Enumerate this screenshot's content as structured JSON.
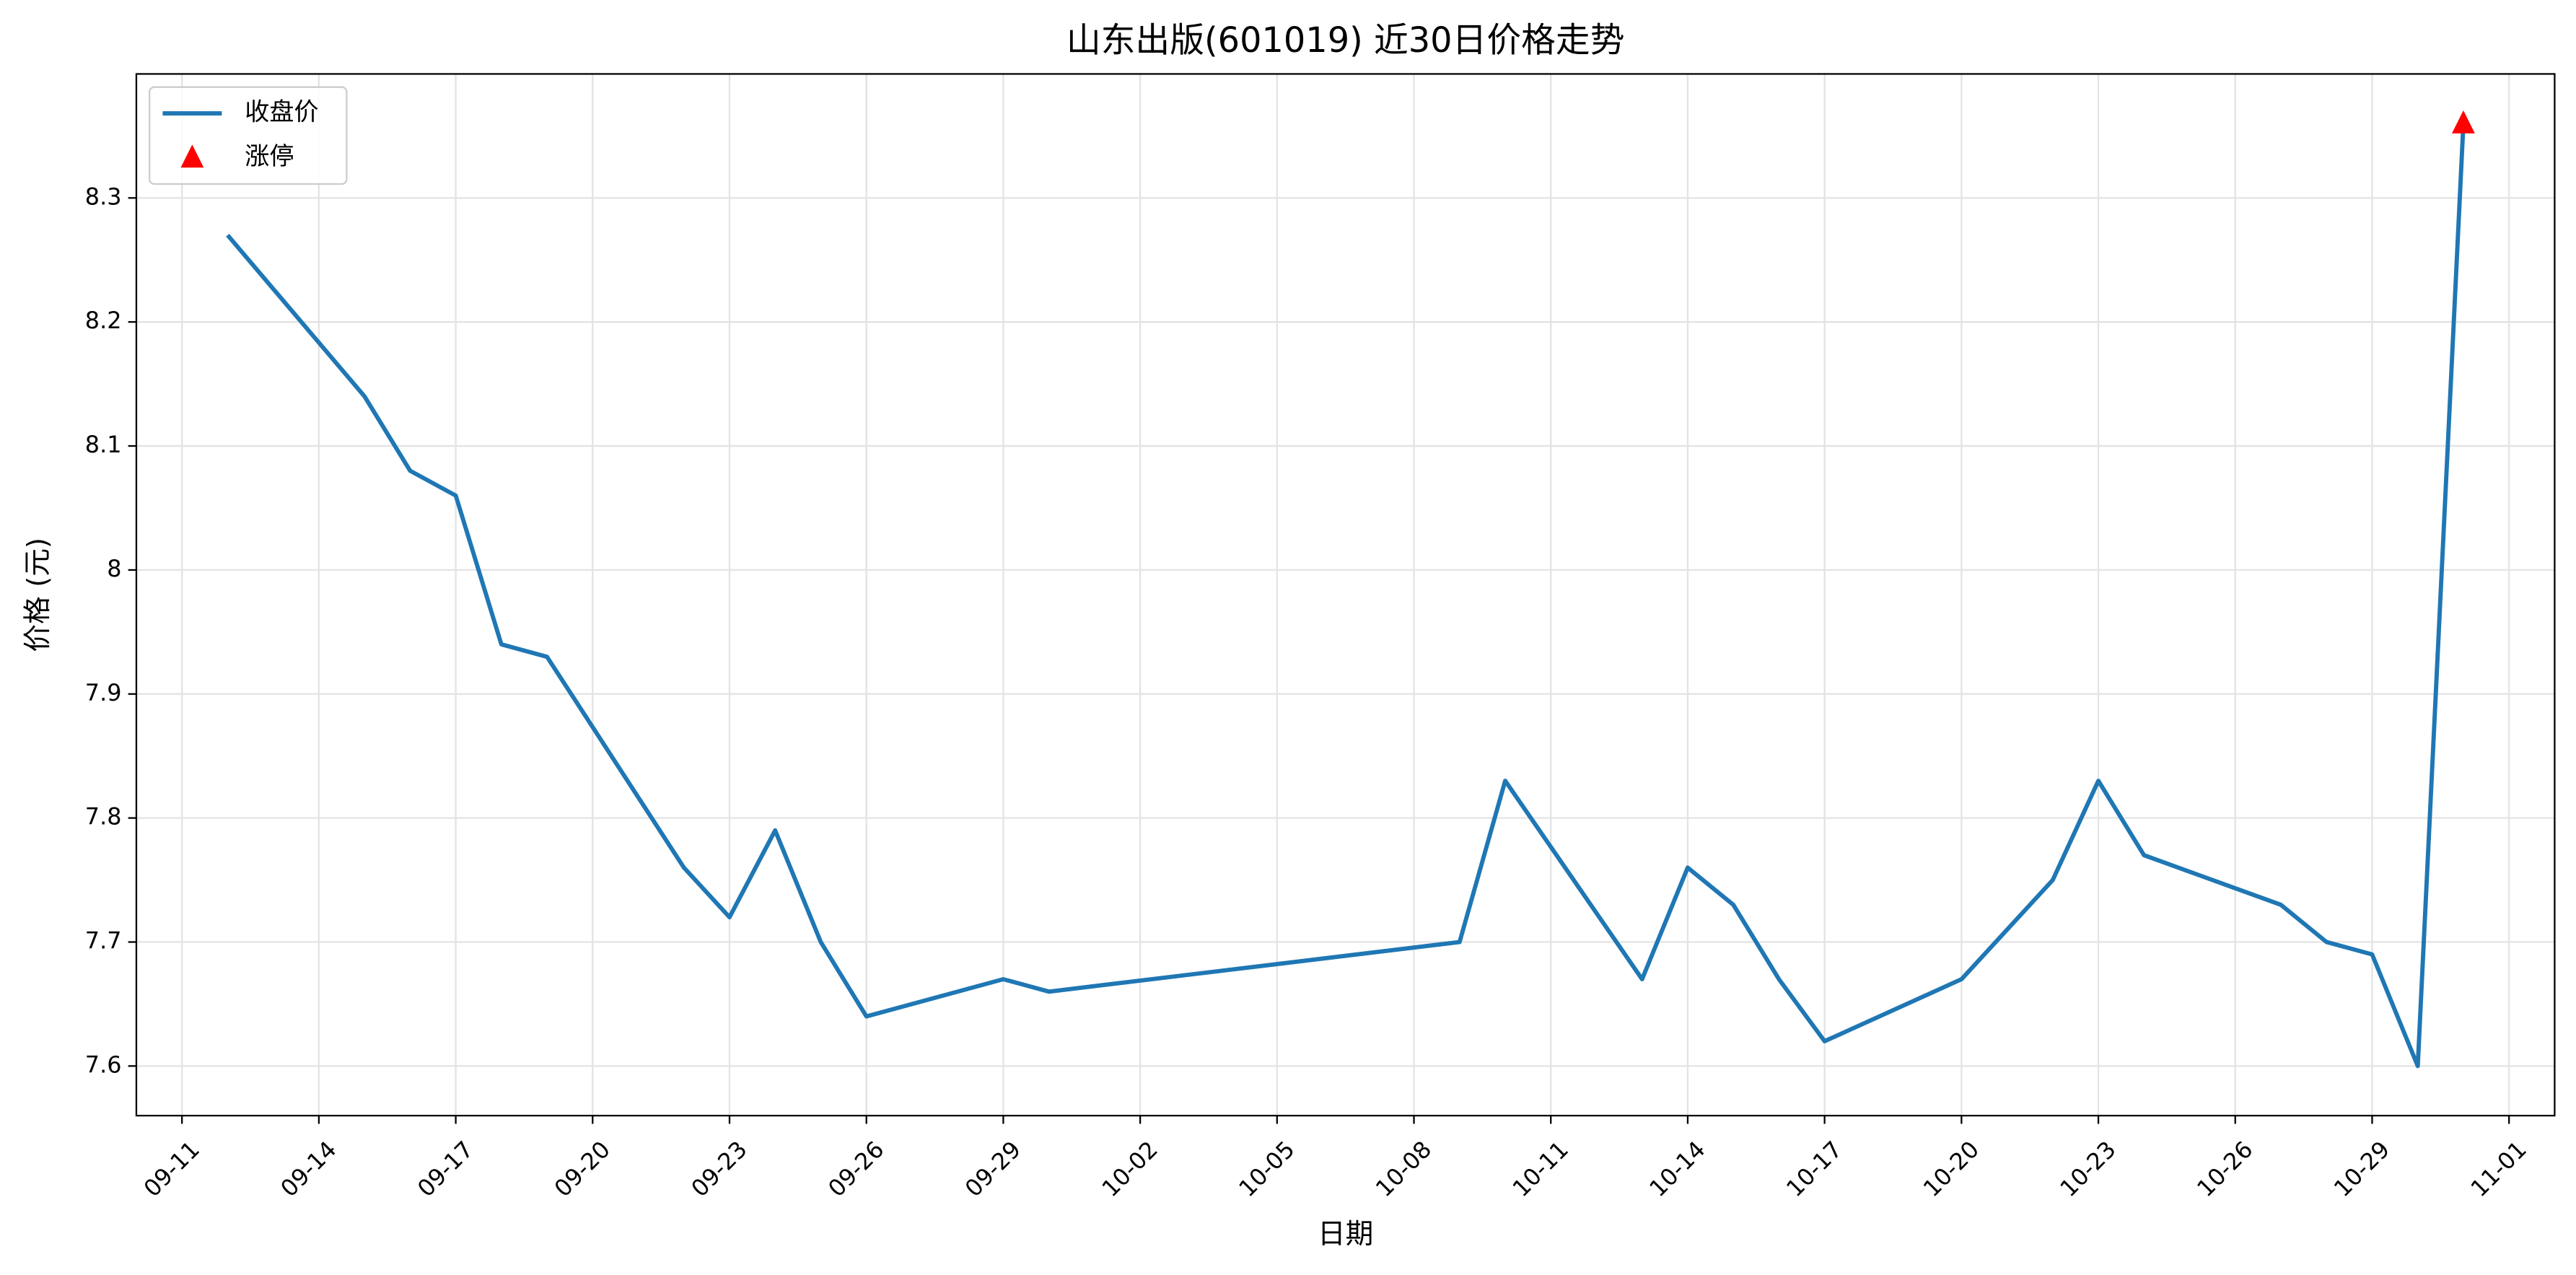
{
  "chart_data": {
    "type": "line",
    "title": "山东出版(601019) 近30日价格走势",
    "x_label": "日期",
    "y_label": "价格 (元)",
    "series": [
      {
        "name": "收盘价",
        "type": "line",
        "color": "#1f77b4",
        "x": [
          "09-12",
          "09-15",
          "09-16",
          "09-17",
          "09-18",
          "09-19",
          "09-22",
          "09-23",
          "09-24",
          "09-25",
          "09-26",
          "09-29",
          "09-30",
          "10-09",
          "10-10",
          "10-13",
          "10-14",
          "10-15",
          "10-16",
          "10-17",
          "10-20",
          "10-22",
          "10-23",
          "10-24",
          "10-27",
          "10-28",
          "10-29",
          "10-30",
          "10-31"
        ],
        "values": [
          8.27,
          8.14,
          8.08,
          8.06,
          7.94,
          7.93,
          7.76,
          7.72,
          7.79,
          7.7,
          7.64,
          7.67,
          7.66,
          7.7,
          7.83,
          7.67,
          7.76,
          7.73,
          7.67,
          7.62,
          7.67,
          7.75,
          7.83,
          7.77,
          7.73,
          7.7,
          7.69,
          7.6,
          8.36
        ]
      },
      {
        "name": "涨停",
        "type": "scatter",
        "marker": "triangle",
        "color": "#ff0000",
        "x": [
          "10-31"
        ],
        "values": [
          8.36
        ]
      }
    ],
    "xlim": [
      "09-10",
      "11-02"
    ],
    "xticks": [
      "09-11",
      "09-14",
      "09-17",
      "09-20",
      "09-23",
      "09-26",
      "09-29",
      "10-02",
      "10-05",
      "10-08",
      "10-11",
      "10-14",
      "10-17",
      "10-20",
      "10-23",
      "10-26",
      "10-29",
      "11-01"
    ],
    "ylim": [
      7.56,
      8.4
    ],
    "yticks": [
      7.6,
      7.7,
      7.8,
      7.9,
      8.0,
      8.1,
      8.2,
      8.3
    ],
    "grid": true,
    "legend": "upper left"
  }
}
